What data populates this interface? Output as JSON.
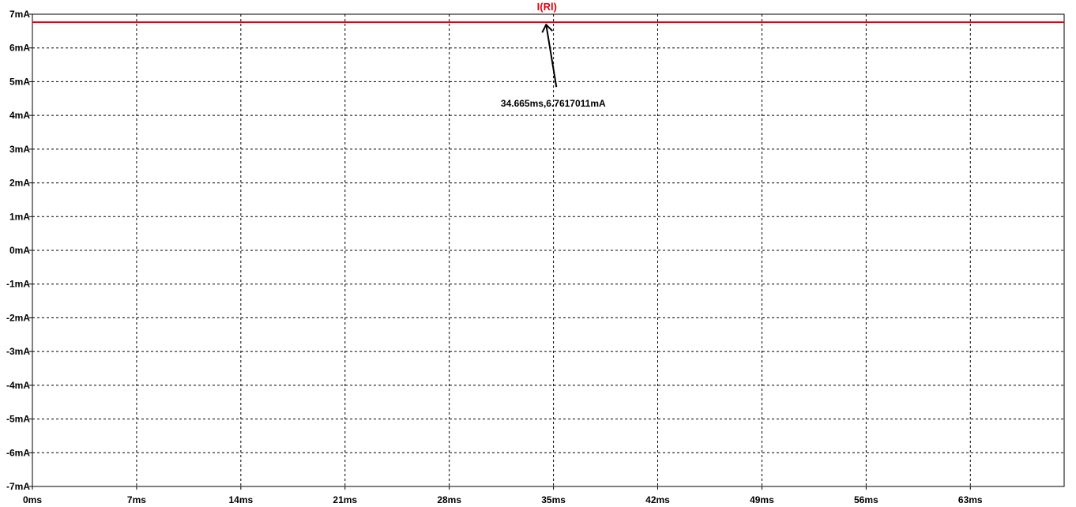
{
  "chart_data": {
    "type": "line",
    "title": "",
    "xlabel": "",
    "ylabel": "",
    "xlim": [
      0,
      69.3
    ],
    "ylim": [
      -7,
      7
    ],
    "x_unit": "ms",
    "y_unit": "mA",
    "grid": true,
    "x_ticks": [
      0,
      7,
      14,
      21,
      28,
      35,
      42,
      49,
      56,
      63
    ],
    "x_tick_labels": [
      "0ms",
      "7ms",
      "14ms",
      "21ms",
      "28ms",
      "35ms",
      "42ms",
      "49ms",
      "56ms",
      "63ms"
    ],
    "y_ticks": [
      7,
      6,
      5,
      4,
      3,
      2,
      1,
      0,
      -1,
      -2,
      -3,
      -4,
      -5,
      -6,
      -7
    ],
    "y_tick_labels": [
      "7mA",
      "6mA",
      "5mA",
      "4mA",
      "3mA",
      "2mA",
      "1mA",
      "0mA",
      "-1mA",
      "-2mA",
      "-3mA",
      "-4mA",
      "-5mA",
      "-6mA",
      "-7mA"
    ],
    "series": [
      {
        "name": "I(Rl)",
        "color": "#e0000f",
        "x": [
          0,
          69.3
        ],
        "y": [
          6.7617011,
          6.7617011
        ]
      }
    ],
    "annotation": {
      "text": "34.665ms,6.7617011mA",
      "x": 34.665,
      "y": 6.7617011
    }
  }
}
